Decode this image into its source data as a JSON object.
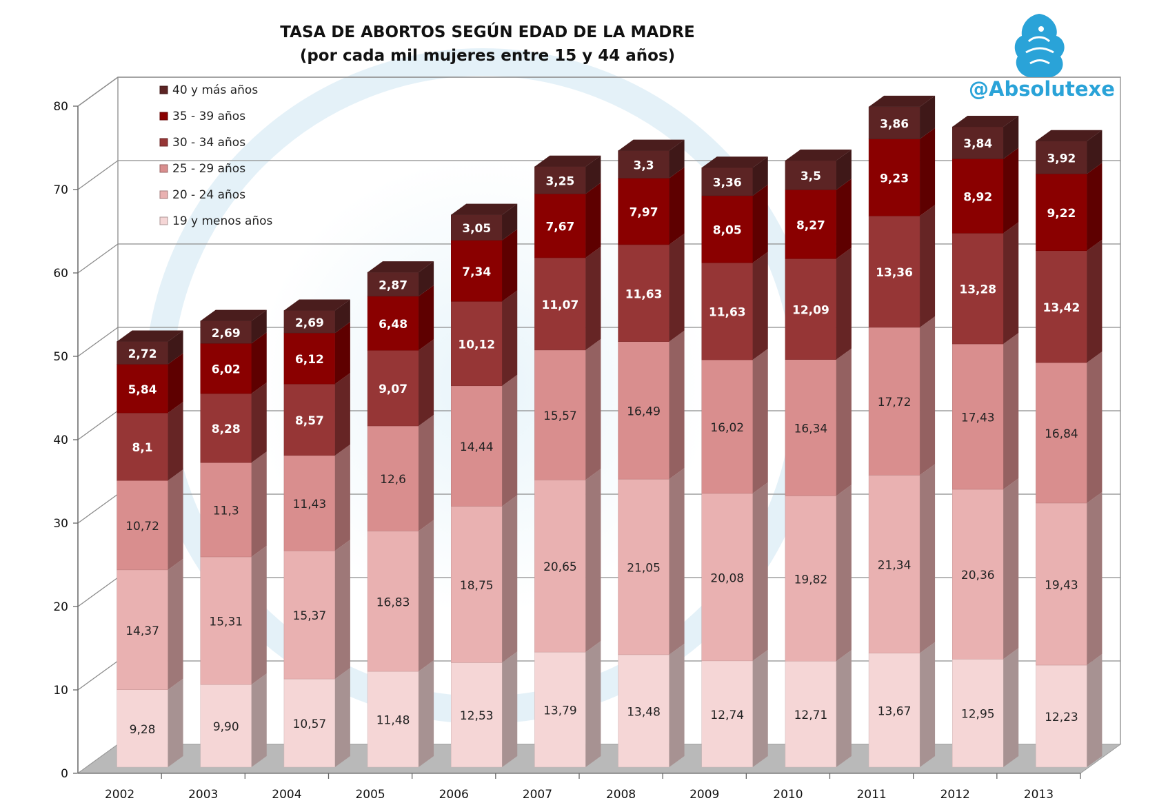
{
  "header": {
    "title_line1": "TASA DE ABORTOS SEGÚN EDAD DE LA MADRE",
    "title_line2": "(por cada mil mujeres entre 15 y 44 años)"
  },
  "brand": {
    "handle": "@Absolutexe",
    "logo_icon": "griffin-logo-icon",
    "color": "#2aa3d8"
  },
  "chart_data": {
    "type": "bar",
    "stacked": true,
    "three_d": true,
    "title": "TASA DE ABORTOS SEGÚN EDAD DE LA MADRE",
    "subtitle": "(por cada mil mujeres entre 15 y 44 años)",
    "xlabel": "",
    "ylabel": "",
    "ylim": [
      0,
      80
    ],
    "y_ticks": [
      0,
      10,
      20,
      30,
      40,
      50,
      60,
      70,
      80
    ],
    "grid": true,
    "legend_position": "top-left",
    "categories": [
      "2002",
      "2003",
      "2004",
      "2005",
      "2006",
      "2007",
      "2008",
      "2009",
      "2010",
      "2011",
      "2012",
      "2013"
    ],
    "series": [
      {
        "name": "19 y menos años",
        "color": "#f5d6d6",
        "values": [
          9.28,
          9.9,
          10.57,
          11.48,
          12.53,
          13.79,
          13.48,
          12.74,
          12.71,
          13.67,
          12.95,
          12.23
        ],
        "labels": [
          "9,28",
          "9,90",
          "10,57",
          "11,48",
          "12,53",
          "13,79",
          "13,48",
          "12,74",
          "12,71",
          "13,67",
          "12,95",
          "12,23"
        ]
      },
      {
        "name": "20 - 24 años",
        "color": "#e9b1b1",
        "values": [
          14.37,
          15.31,
          15.37,
          16.83,
          18.75,
          20.65,
          21.05,
          20.08,
          19.82,
          21.34,
          20.36,
          19.43
        ],
        "labels": [
          "14,37",
          "15,31",
          "15,37",
          "16,83",
          "18,75",
          "20,65",
          "21,05",
          "20,08",
          "19,82",
          "21,34",
          "20,36",
          "19,43"
        ]
      },
      {
        "name": "25 - 29 años",
        "color": "#d98e8e",
        "values": [
          10.72,
          11.3,
          11.43,
          12.6,
          14.44,
          15.57,
          16.49,
          16.02,
          16.34,
          17.72,
          17.43,
          16.84
        ],
        "labels": [
          "10,72",
          "11,3",
          "11,43",
          "12,6",
          "14,44",
          "15,57",
          "16,49",
          "16,02",
          "16,34",
          "17,72",
          "17,43",
          "16,84"
        ]
      },
      {
        "name": "30 - 34 años",
        "color": "#963636",
        "values": [
          8.1,
          8.28,
          8.57,
          9.07,
          10.12,
          11.07,
          11.63,
          11.63,
          12.09,
          13.36,
          13.28,
          13.42
        ],
        "labels": [
          "8,1",
          "8,28",
          "8,57",
          "9,07",
          "10,12",
          "11,07",
          "11,63",
          "11,63",
          "12,09",
          "13,36",
          "13,28",
          "13,42"
        ]
      },
      {
        "name": "35 - 39 años",
        "color": "#8a0000",
        "values": [
          5.84,
          6.02,
          6.12,
          6.48,
          7.34,
          7.67,
          7.97,
          8.05,
          8.27,
          9.23,
          8.92,
          9.22
        ],
        "labels": [
          "5,84",
          "6,02",
          "6,12",
          "6,48",
          "7,34",
          "7,67",
          "7,97",
          "8,05",
          "8,27",
          "9,23",
          "8,92",
          "9,22"
        ]
      },
      {
        "name": "40 y más años",
        "color": "#5c2424",
        "values": [
          2.72,
          2.69,
          2.69,
          2.87,
          3.05,
          3.25,
          3.3,
          3.36,
          3.5,
          3.86,
          3.84,
          3.92
        ],
        "labels": [
          "2,72",
          "2,69",
          "2,69",
          "2,87",
          "3,05",
          "3,25",
          "3,3",
          "3,36",
          "3,5",
          "3,86",
          "3,84",
          "3,92"
        ]
      }
    ]
  }
}
